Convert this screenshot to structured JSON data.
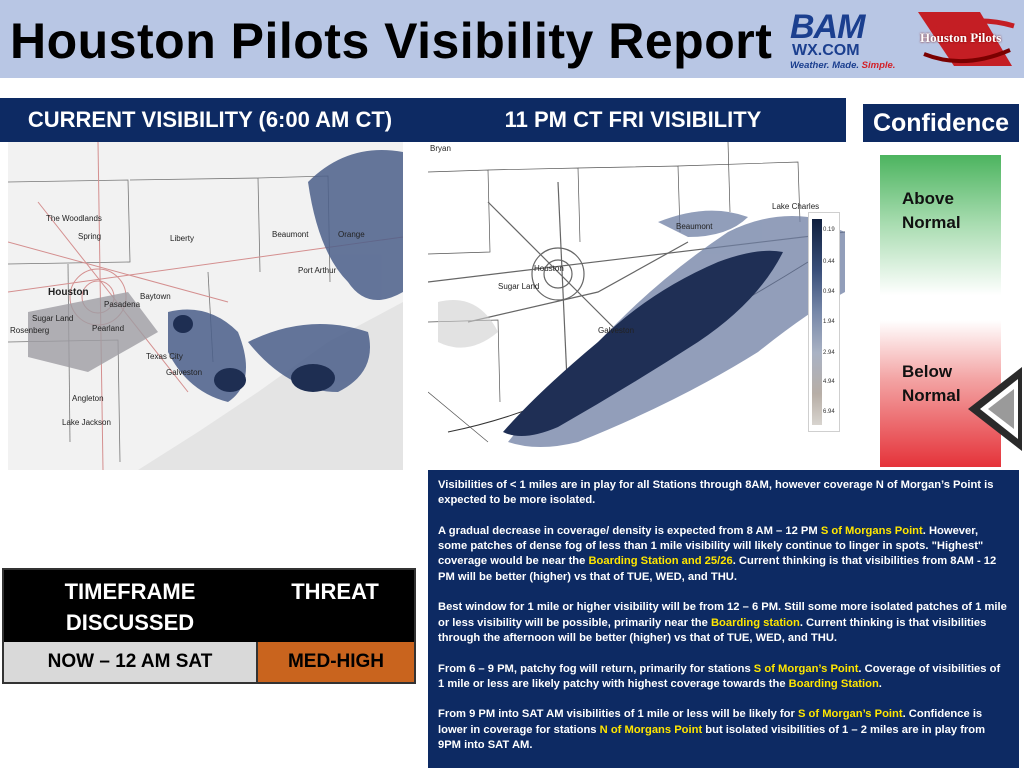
{
  "header": {
    "title": "Houston Pilots Visibility Report",
    "logo_bam": {
      "main": "BAM",
      "sub": "WX.COM",
      "tagline_1": "Weather. Made. ",
      "tagline_2": "Simple."
    },
    "logo_hp": {
      "text": "Houston Pilots"
    }
  },
  "panels": {
    "current_title": "CURRENT VISIBILITY (6:00 AM CT)",
    "forecast_title": "11 PM CT FRI VISIBILITY",
    "confidence_title": "Confidence"
  },
  "map_current": {
    "labels": [
      "The Woodlands",
      "Spring",
      "Liberty",
      "Beaumont",
      "Orange",
      "Port Arthur",
      "Houston",
      "Baytown",
      "Pasadena",
      "Sugar Land",
      "Pearland",
      "Rosenberg",
      "Texas City",
      "Galveston",
      "Angleton",
      "Lake Jackson"
    ]
  },
  "map_forecast": {
    "labels": [
      "Bryan",
      "Lake Charles",
      "Beaumont",
      "Houston",
      "Sugar Land",
      "Galveston"
    ],
    "legend_ticks": [
      "0.19",
      "0.44",
      "0.94",
      "1.94",
      "2.94",
      "4.94",
      "6.94"
    ]
  },
  "confidence": {
    "above": "Above\nNormal",
    "below": "Below\nNormal",
    "colors": {
      "above": "#4cb45f",
      "below": "#e5333a"
    }
  },
  "threat_table": {
    "col1_header": "TIMEFRAME DISCUSSED",
    "col2_header": "THREAT",
    "timeframe": "NOW – 12 AM SAT",
    "threat": "MED-HIGH",
    "threat_color": "#c9641e"
  },
  "discussion": {
    "p1": "Visibilities of < 1 miles are in play for all Stations through 8AM, however coverage N of Morgan’s Point is expected to be more isolated.",
    "p2_a": "A gradual decrease in coverage/ density is expected from 8 AM – 12 PM ",
    "p2_hl1": "S of Morgans Point",
    "p2_b": ".  However, some patches of dense fog of less than 1 mile visibility will likely continue to linger in spots. \"Highest\" coverage would be near the ",
    "p2_hl2": "Boarding Station and 25/26",
    "p2_c": ". Current thinking is that visibilities from 8AM - 12 PM will be better (higher) vs that of TUE, WED, and THU.",
    "p3_a": "Best window for 1 mile or higher visibility will be from 12 – 6 PM.  Still some more isolated patches of 1 mile or less visibility will be possible, primarily near the ",
    "p3_hl1": "Boarding station",
    "p3_b": ".  Current thinking is that visibilities through the afternoon will be better (higher) vs that of TUE, WED, and THU.",
    "p4_a": "From 6 – 9 PM, patchy fog will return, primarily for stations ",
    "p4_hl1": "S of Morgan’s Point",
    "p4_b": ".  Coverage of visibilities of 1 mile or less are likely patchy with highest coverage towards the ",
    "p4_hl2": "Boarding Station",
    "p4_c": ".",
    "p5_a": "From 9 PM into SAT AM visibilities of 1 mile or less will be likely for ",
    "p5_hl1": "S of Morgan’s Point",
    "p5_b": ".  Confidence is lower in coverage for stations ",
    "p5_hl2": "N of Morgans Point",
    "p5_c": " but isolated visibilities of 1 – 2 miles are in play from 9PM into SAT AM."
  }
}
